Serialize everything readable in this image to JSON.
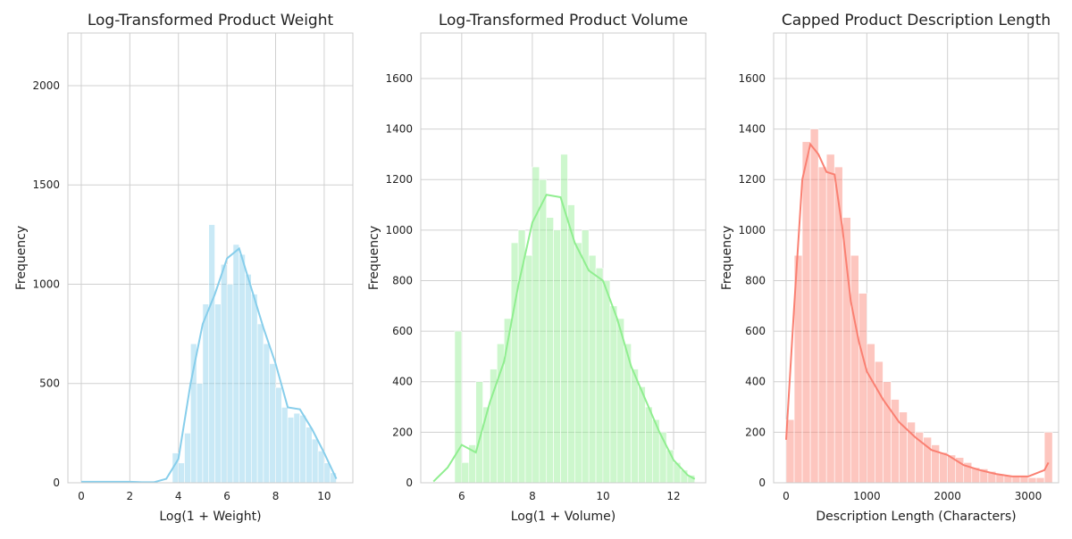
{
  "chart_data": [
    {
      "type": "histogram",
      "title": "Log-Transformed Product Weight",
      "xlabel": "Log(1 + Weight)",
      "ylabel": "Frequency",
      "color": "#87ceeb",
      "grid": true,
      "bins": [
        0,
        0.25,
        0.5,
        0.75,
        1,
        1.25,
        1.5,
        1.75,
        2,
        2.25,
        2.5,
        2.75,
        3,
        3.25,
        3.5,
        3.75,
        4,
        4.25,
        4.5,
        4.75,
        5,
        5.25,
        5.5,
        5.75,
        6,
        6.25,
        6.5,
        6.75,
        7,
        7.25,
        7.5,
        7.75,
        8,
        8.25,
        8.5,
        8.75,
        9,
        9.25,
        9.5,
        9.75,
        10,
        10.25,
        10.5
      ],
      "counts": [
        5,
        3,
        2,
        3,
        4,
        3,
        5,
        3,
        2,
        3,
        2,
        2,
        2,
        2,
        3,
        150,
        100,
        250,
        700,
        500,
        900,
        1300,
        900,
        1100,
        1000,
        1200,
        1150,
        1050,
        950,
        800,
        700,
        600,
        480,
        380,
        330,
        350,
        340,
        280,
        220,
        160,
        100,
        50
      ],
      "kde": {
        "x": [
          0,
          0.5,
          1,
          1.5,
          2,
          2.5,
          3,
          3.5,
          4,
          4.5,
          5,
          5.5,
          6,
          6.5,
          7,
          7.5,
          8,
          8.5,
          9,
          9.5,
          10,
          10.5
        ],
        "values": [
          5,
          5,
          5,
          5,
          5,
          3,
          3,
          20,
          120,
          500,
          800,
          950,
          1130,
          1180,
          980,
          780,
          600,
          380,
          370,
          270,
          150,
          20
        ]
      },
      "xlim": [
        -0.55,
        11.18
      ],
      "ylim": [
        0,
        2265
      ],
      "xticks": [
        0,
        2,
        4,
        6,
        8,
        10
      ],
      "yticks": [
        0,
        500,
        1000,
        1500,
        2000
      ]
    },
    {
      "type": "histogram",
      "title": "Log-Transformed Product Volume",
      "xlabel": "Log(1 + Volume)",
      "ylabel": "Frequency",
      "color": "#90ee90",
      "grid": true,
      "bins": [
        5.8,
        6.0,
        6.2,
        6.4,
        6.6,
        6.8,
        7.0,
        7.2,
        7.4,
        7.6,
        7.8,
        8.0,
        8.2,
        8.4,
        8.6,
        8.8,
        9.0,
        9.2,
        9.4,
        9.6,
        9.8,
        10.0,
        10.2,
        10.4,
        10.6,
        10.8,
        11.0,
        11.2,
        11.4,
        11.6,
        11.8,
        12.0,
        12.2,
        12.4,
        12.6
      ],
      "counts": [
        600,
        80,
        150,
        400,
        300,
        450,
        550,
        650,
        950,
        1000,
        900,
        1250,
        1200,
        1050,
        1000,
        1300,
        1100,
        950,
        1000,
        900,
        850,
        800,
        700,
        650,
        550,
        450,
        380,
        300,
        250,
        200,
        130,
        80,
        50,
        30
      ],
      "kde": {
        "x": [
          5.2,
          5.6,
          6.0,
          6.4,
          6.8,
          7.2,
          7.6,
          8.0,
          8.4,
          8.8,
          9.2,
          9.6,
          10.0,
          10.4,
          10.8,
          11.2,
          11.6,
          12.0,
          12.4,
          12.6
        ],
        "values": [
          5,
          60,
          150,
          120,
          320,
          480,
          780,
          1030,
          1140,
          1130,
          950,
          840,
          800,
          650,
          460,
          330,
          200,
          90,
          30,
          15
        ]
      },
      "xlim": [
        4.84,
        12.91
      ],
      "ylim": [
        0,
        1780
      ],
      "xticks": [
        6,
        8,
        10,
        12
      ],
      "yticks": [
        0,
        200,
        400,
        600,
        800,
        1000,
        1200,
        1400,
        1600
      ]
    },
    {
      "type": "histogram",
      "title": "Capped Product Description Length",
      "xlabel": "Description Length (Characters)",
      "ylabel": "Frequency",
      "color": "#fa8072",
      "grid": true,
      "bins": [
        0,
        100,
        200,
        300,
        400,
        500,
        600,
        700,
        800,
        900,
        1000,
        1100,
        1200,
        1300,
        1400,
        1500,
        1600,
        1700,
        1800,
        1900,
        2000,
        2100,
        2200,
        2300,
        2400,
        2500,
        2600,
        2700,
        2800,
        2900,
        3000,
        3100,
        3200,
        3300
      ],
      "counts": [
        250,
        900,
        1350,
        1400,
        1250,
        1300,
        1250,
        1050,
        900,
        750,
        550,
        480,
        400,
        330,
        280,
        240,
        200,
        180,
        150,
        120,
        110,
        100,
        80,
        60,
        55,
        45,
        35,
        30,
        25,
        25,
        20,
        20,
        200
      ],
      "kde": {
        "x": [
          0,
          100,
          200,
          300,
          400,
          500,
          600,
          700,
          800,
          900,
          1000,
          1200,
          1400,
          1600,
          1800,
          2000,
          2200,
          2400,
          2600,
          2800,
          3000,
          3200,
          3250
        ],
        "values": [
          170,
          700,
          1200,
          1340,
          1300,
          1230,
          1220,
          1000,
          720,
          560,
          440,
          330,
          240,
          180,
          130,
          110,
          70,
          50,
          35,
          25,
          25,
          50,
          80
        ]
      },
      "xlim": [
        -155,
        3376
      ],
      "ylim": [
        0,
        1780
      ],
      "xticks": [
        0,
        1000,
        2000,
        3000
      ],
      "yticks": [
        0,
        200,
        400,
        600,
        800,
        1000,
        1200,
        1400,
        1600
      ]
    }
  ]
}
